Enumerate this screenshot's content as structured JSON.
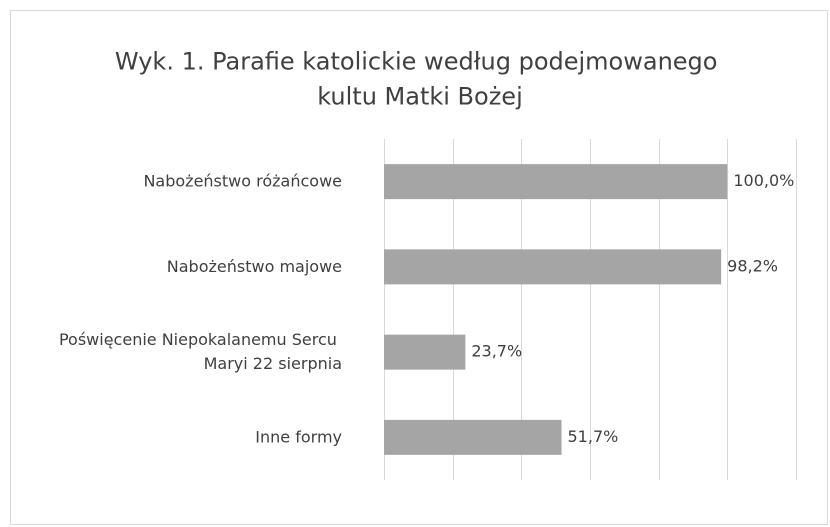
{
  "chart_data": {
    "type": "barh",
    "title": "Wyk. 1. Parafie katolickie według podejmowanego kultu Matki Bożej",
    "categories": [
      "Nabożeństwo różańcowe",
      "Nabożeństwo majowe",
      "Poświęcenie Niepokalanemu Sercu Maryi 22 sierpnia",
      "Inne formy"
    ],
    "values": [
      100.0,
      98.2,
      23.7,
      51.7
    ],
    "value_labels": [
      "100,0%",
      "98,2%",
      "23,7%",
      "51,7%"
    ],
    "color": "#a5a5a5",
    "xlim": [
      0,
      120
    ],
    "xticks": [
      0,
      20,
      40,
      60,
      80,
      100,
      120
    ],
    "grid": true
  }
}
